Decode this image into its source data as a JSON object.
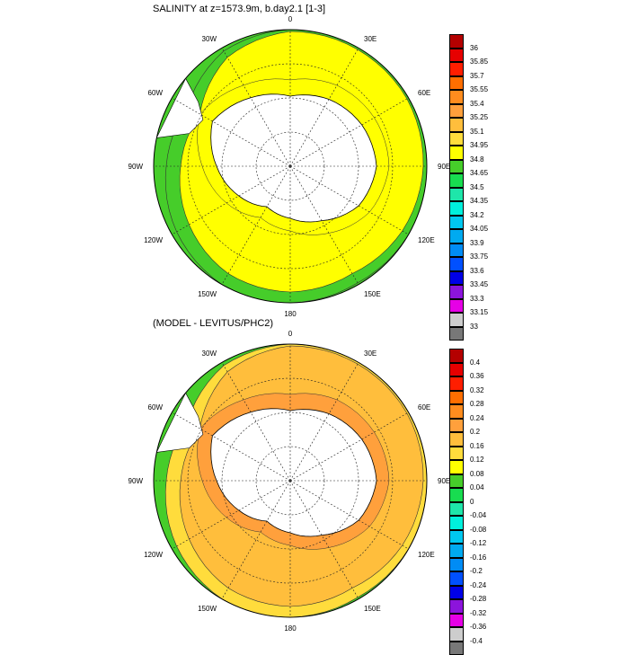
{
  "top": {
    "title": "SALINITY at z=1573.9m, b.day2.1 [1-3]",
    "lon_labels": [
      "0",
      "30E",
      "60E",
      "90E",
      "120E",
      "150E",
      "180",
      "150W",
      "120W",
      "90W",
      "60W",
      "30W"
    ],
    "colorbar": {
      "labels": [
        "36",
        "35.85",
        "35.7",
        "35.55",
        "35.4",
        "35.25",
        "35.1",
        "34.95",
        "34.8",
        "34.65",
        "34.5",
        "34.35",
        "34.2",
        "34.05",
        "33.9",
        "33.75",
        "33.6",
        "33.45",
        "33.3",
        "33.15",
        "33"
      ],
      "colors": [
        "#B40000",
        "#E60000",
        "#FF1E00",
        "#FF6E00",
        "#FF8C1E",
        "#FFA03C",
        "#FFBE3C",
        "#FFDC3C",
        "#FFFF00",
        "#46CD2A",
        "#18DC50",
        "#1EE6AA",
        "#00F0DC",
        "#00C8F0",
        "#00AAF0",
        "#008CF5",
        "#0050FF",
        "#0000E6",
        "#8C14DC",
        "#E600E6",
        "#CDCDCD",
        "#787878"
      ],
      "zone_colors": {
        "antarctica": "#FFFFFF",
        "shelf": "#FFFF00",
        "main": "#FFFF00",
        "rim": "#46CD2A",
        "outer": "#46CD2A"
      }
    }
  },
  "bottom": {
    "title": "(MODEL - LEVITUS/PHC2)",
    "lon_labels": [
      "0",
      "30E",
      "60E",
      "90E",
      "120E",
      "150E",
      "180",
      "150W",
      "120W",
      "90W",
      "60W",
      "30W"
    ],
    "colorbar": {
      "labels": [
        "0.4",
        "0.36",
        "0.32",
        "0.28",
        "0.24",
        "0.2",
        "0.16",
        "0.12",
        "0.08",
        "0.04",
        "0",
        "-0.04",
        "-0.08",
        "-0.12",
        "-0.16",
        "-0.2",
        "-0.24",
        "-0.28",
        "-0.32",
        "-0.36",
        "-0.4"
      ],
      "colors": [
        "#B40000",
        "#E60000",
        "#FF1E00",
        "#FF6E00",
        "#FF8C1E",
        "#FFA03C",
        "#FFBE3C",
        "#FFDC3C",
        "#FFFF00",
        "#46CD2A",
        "#18DC50",
        "#1EE6AA",
        "#00F0DC",
        "#00C8F0",
        "#00AAF0",
        "#008CF5",
        "#0050FF",
        "#0000E6",
        "#8C14DC",
        "#E600E6",
        "#CDCDCD",
        "#787878"
      ],
      "zone_colors": {
        "antarctica": "#FFFFFF",
        "shelf": "#FFA03C",
        "main": "#FFBE3C",
        "rim": "#FFDC3C",
        "outer": "#46CD2A"
      }
    }
  }
}
